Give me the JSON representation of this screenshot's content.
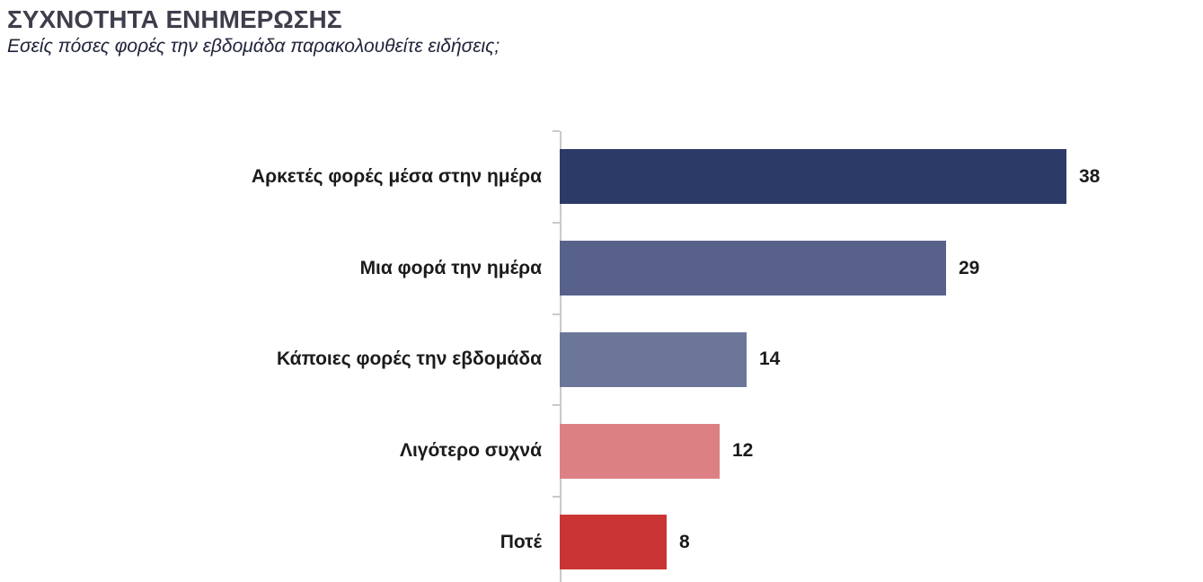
{
  "header": {
    "title": "ΣΥΧΝΟΤΗΤΑ ΕΝΗΜΕΡΩΣΗΣ",
    "subtitle": "Εσείς πόσες φορές την εβδομάδα παρακολουθείτε ειδήσεις;"
  },
  "chart_data": {
    "type": "bar",
    "orientation": "horizontal",
    "title": "ΣΥΧΝΟΤΗΤΑ ΕΝΗΜΕΡΩΣΗΣ",
    "subtitle": "Εσείς πόσες φορές την εβδομάδα παρακολουθείτε ειδήσεις;",
    "categories": [
      "Αρκετές φορές μέσα στην ημέρα",
      "Μια φορά την ημέρα",
      "Κάποιες φορές την εβδομάδα",
      "Λιγότερο συχνά",
      "Ποτέ"
    ],
    "values": [
      38,
      29,
      14,
      12,
      8
    ],
    "bar_colors": [
      "#2b3a67",
      "#57618a",
      "#6c7699",
      "#dd8084",
      "#cb3434"
    ],
    "value_labels": [
      "38",
      "29",
      "14",
      "12",
      "8"
    ],
    "xlabel": "",
    "ylabel": "",
    "xlim": [
      0,
      48
    ],
    "grid": false,
    "legend": false,
    "data_labels_shown": true,
    "axis_color": "#c9c9c9",
    "label_color": "#1b1b1b"
  }
}
